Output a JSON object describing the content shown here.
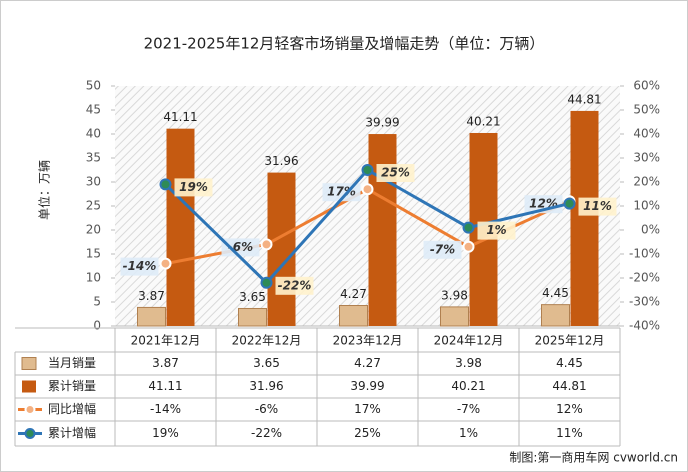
{
  "chart_data": {
    "type": "bar-line",
    "title": "2021-2025年12月轻客市场销量及增幅走势（单位：万辆）",
    "y_label": "单位：万辆",
    "source": "制图:第一商用车网 cvworld.cn",
    "categories": [
      "2021年12月",
      "2022年12月",
      "2023年12月",
      "2024年12月",
      "2025年12月"
    ],
    "series": [
      {
        "name": "当月销量",
        "type": "bar",
        "color": "#e0bb8f",
        "values": [
          3.87,
          3.65,
          4.27,
          3.98,
          4.45
        ]
      },
      {
        "name": "累计销量",
        "type": "bar",
        "color": "#c55a11",
        "values": [
          41.11,
          31.96,
          39.99,
          40.21,
          44.81
        ]
      },
      {
        "name": "同比增幅",
        "type": "line",
        "axis": "y2",
        "color": "#ed7d31",
        "values": [
          -14,
          -6,
          17,
          -7,
          12
        ],
        "value_labels": [
          "-14%",
          "-6%",
          "17%",
          "-7%",
          "12%"
        ]
      },
      {
        "name": "累计增幅",
        "type": "line",
        "axis": "y2",
        "color": "#2e75b6",
        "values": [
          19,
          -22,
          25,
          1,
          11
        ],
        "value_labels": [
          "19%",
          "-22%",
          "25%",
          "1%",
          "11%"
        ]
      }
    ],
    "ylim": [
      0,
      50
    ],
    "yticks": [
      0,
      5,
      10,
      15,
      20,
      25,
      30,
      35,
      40,
      45,
      50
    ],
    "y2lim": [
      -40,
      60
    ],
    "y2ticks": [
      {
        "value": -40,
        "label": "-40%"
      },
      {
        "value": -30,
        "label": "-30%"
      },
      {
        "value": -20,
        "label": "-20%"
      },
      {
        "value": -10,
        "label": "-10%"
      },
      {
        "value": 0,
        "label": "0%"
      },
      {
        "value": 10,
        "label": "10%"
      },
      {
        "value": 20,
        "label": "20%"
      },
      {
        "value": 30,
        "label": "30%"
      },
      {
        "value": 40,
        "label": "40%"
      },
      {
        "value": 50,
        "label": "50%"
      },
      {
        "value": 60,
        "label": "60%"
      }
    ]
  }
}
